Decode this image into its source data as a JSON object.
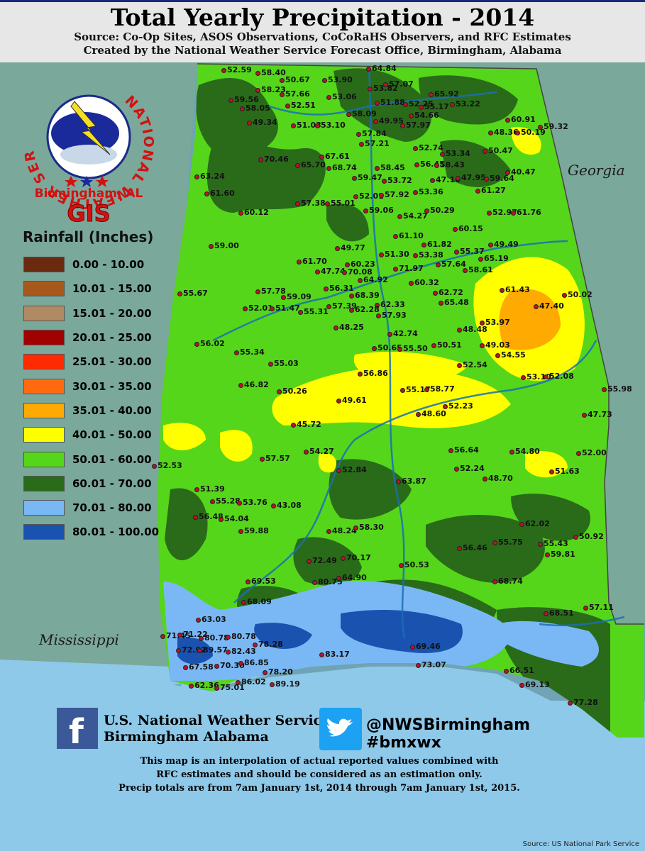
{
  "header": {
    "title": "Total Yearly Precipitation - 2014",
    "source": "Source: Co-Op Sites, ASOS Observations, CoCoRaHS Observers, and RFC Estimates",
    "created": "Created by the National Weather Service Forecast Office, Birmingham, Alabama"
  },
  "logo": {
    "ring_text": "NATIONAL WEATHER SERVICE",
    "office": "Birmingham, AL",
    "gis": "GIS"
  },
  "legend": {
    "title": "Rainfall (Inches)",
    "items": [
      {
        "label": "0.00 - 10.00",
        "color": "#6b2a10"
      },
      {
        "label": "10.01 - 15.00",
        "color": "#a8581b"
      },
      {
        "label": "15.01 - 20.00",
        "color": "#b08a63"
      },
      {
        "label": "20.01 - 25.00",
        "color": "#a00000"
      },
      {
        "label": "25.01 - 30.00",
        "color": "#ff2a00"
      },
      {
        "label": "30.01 - 35.00",
        "color": "#ff6a10"
      },
      {
        "label": "35.01 - 40.00",
        "color": "#ffaa00"
      },
      {
        "label": "40.01 - 50.00",
        "color": "#ffff00"
      },
      {
        "label": "50.01 - 60.00",
        "color": "#55d61a"
      },
      {
        "label": "60.01 - 70.00",
        "color": "#2a6b1a"
      },
      {
        "label": "70.01 - 80.00",
        "color": "#7ab8f5"
      },
      {
        "label": "80.01 - 100.00",
        "color": "#1a52b0"
      }
    ]
  },
  "states": {
    "georgia": "Georgia",
    "mississippi": "Mississippi"
  },
  "stations": [
    "52.59",
    "58.40",
    "50.67",
    "53.90",
    "64.84",
    "57.07",
    "53.06",
    "53.82",
    "65.92",
    "58.23",
    "57.66",
    "51.88",
    "52.25",
    "53.22",
    "59.56",
    "52.51",
    "58.05",
    "55.17",
    "54.66",
    "57.97",
    "49.34",
    "51.03",
    "53.10",
    "58.09",
    "49.95",
    "57.84",
    "57.21",
    "60.91",
    "59.32",
    "48.36",
    "50.19",
    "52.74",
    "53.34",
    "50.47",
    "70.46",
    "67.61",
    "65.70",
    "68.74",
    "58.45",
    "56.45",
    "58.43",
    "63.24",
    "59.47",
    "53.72",
    "47.16",
    "47.95",
    "59.64",
    "40.47",
    "61.60",
    "52.01",
    "57.92",
    "53.36",
    "61.27",
    "57.38",
    "55.01",
    "59.06",
    "54.27",
    "50.29",
    "52.97",
    "61.76",
    "60.12",
    "60.15",
    "59.00",
    "61.10",
    "61.82",
    "55.37",
    "49.49",
    "61.70",
    "49.77",
    "51.30",
    "53.38",
    "57.64",
    "65.19",
    "47.74",
    "60.23",
    "70.08",
    "71.97",
    "58.61",
    "60.32",
    "55.67",
    "57.78",
    "59.09",
    "56.31",
    "64.92",
    "62.72",
    "61.43",
    "50.02",
    "52.01",
    "51.47",
    "55.31",
    "57.39",
    "68.39",
    "62.33",
    "65.48",
    "47.40",
    "62.28",
    "57.93",
    "48.25",
    "53.97",
    "48.48",
    "42.74",
    "49.03",
    "56.02",
    "55.34",
    "50.65",
    "55.50",
    "50.51",
    "54.55",
    "55.03",
    "52.54",
    "53.10",
    "52.08",
    "56.86",
    "46.82",
    "50.26",
    "55.17",
    "58.77",
    "55.98",
    "49.61",
    "52.23",
    "48.60",
    "47.73",
    "45.72",
    "54.27",
    "56.64",
    "54.80",
    "52.00",
    "52.53",
    "57.57",
    "52.84",
    "52.24",
    "48.70",
    "51.63",
    "51.39",
    "63.87",
    "55.28",
    "53.76",
    "43.08",
    "56.48",
    "54.04",
    "59.88",
    "62.02",
    "48.24",
    "58.30",
    "56.46",
    "55.75",
    "55.43",
    "50.92",
    "50.53",
    "59.81",
    "72.49",
    "70.17",
    "80.75",
    "64.90",
    "69.53",
    "68.74",
    "68.09",
    "68.51",
    "57.11",
    "63.03",
    "71.45",
    "71.22",
    "80.78",
    "80.78",
    "78.28",
    "72.92",
    "89.57",
    "82.43",
    "69.46",
    "83.17",
    "70.30",
    "86.85",
    "73.07",
    "67.58",
    "78.20",
    "66.51",
    "62.36",
    "75.01",
    "86.02",
    "89.19",
    "69.13",
    "77.28"
  ],
  "social": {
    "facebook_icon": "facebook-logo",
    "twitter_icon": "twitter-bird",
    "nws_line1": "U.S. National Weather Service",
    "nws_line2": "Birmingham Alabama",
    "twitter_handle": "@NWSBirmingham",
    "hashtag": "#bmxwx"
  },
  "disclaimer": {
    "line1": "This map is an interpolation of actual reported values combined with",
    "line2": "RFC estimates and should be considered as an estimation only.",
    "line3": "Precip totals are from 7am January 1st, 2014 through 7am January 1st, 2015."
  },
  "credit": "Source: US National Park Service"
}
